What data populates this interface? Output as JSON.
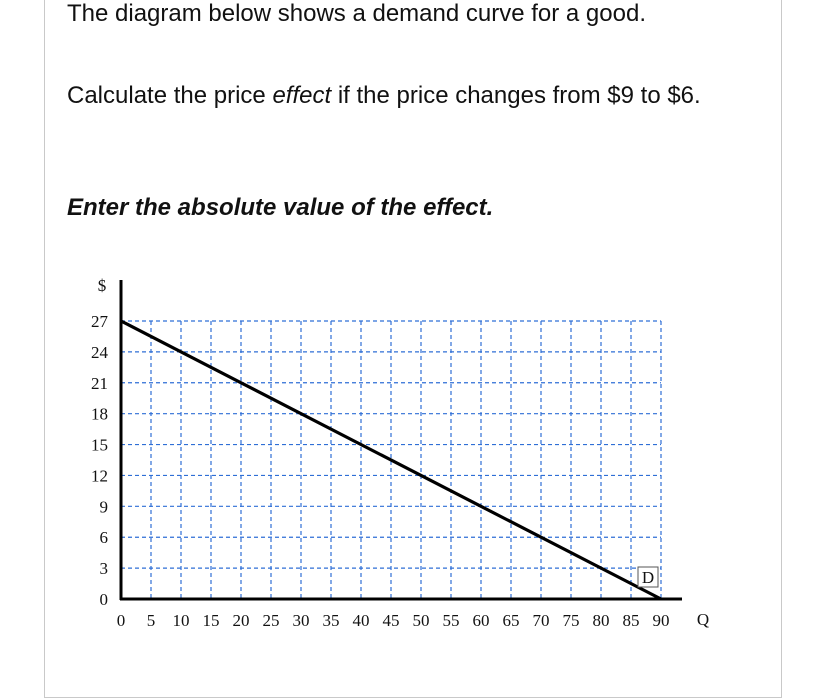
{
  "question": {
    "intro": "The diagram below shows a demand curve for a good.",
    "calc_before": "Calculate the price ",
    "calc_emphasis": "effect",
    "calc_after": " if the price changes from $9 to $6.",
    "instruction": "Enter the absolute value of the effect."
  },
  "chart_data": {
    "type": "line",
    "title": "",
    "xlabel": "Q",
    "ylabel": "$",
    "x_ticks": [
      0,
      5,
      10,
      15,
      20,
      25,
      30,
      35,
      40,
      45,
      50,
      55,
      60,
      65,
      70,
      75,
      80,
      85,
      90
    ],
    "y_ticks": [
      0,
      3,
      6,
      9,
      12,
      15,
      18,
      21,
      24,
      27
    ],
    "xlim": [
      0,
      90
    ],
    "ylim": [
      0,
      27
    ],
    "grid": true,
    "grid_style": "dashed",
    "series": [
      {
        "name": "D",
        "x": [
          0,
          90
        ],
        "y": [
          27,
          0
        ]
      }
    ],
    "colors": {
      "grid": "#2f6fd6",
      "curve": "#000000",
      "axes": "#000000"
    }
  }
}
